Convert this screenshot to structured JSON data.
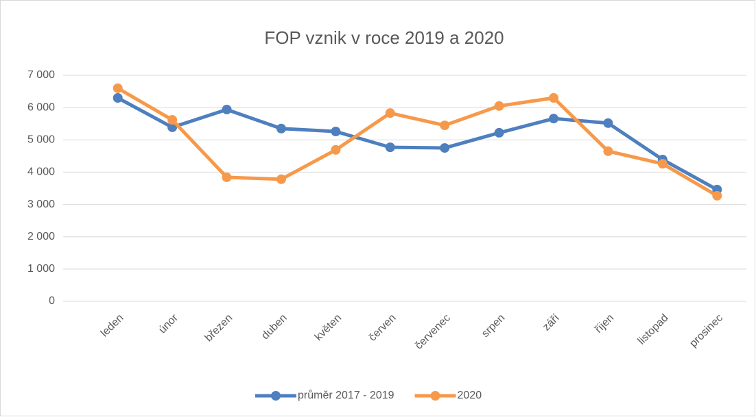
{
  "chart_data": {
    "type": "line",
    "title": "FOP vznik v roce 2019 a 2020",
    "categories": [
      "leden",
      "únor",
      "březen",
      "duben",
      "květen",
      "červen",
      "červenec",
      "srpen",
      "září",
      "říjen",
      "listopad",
      "prosinec"
    ],
    "series": [
      {
        "name": "průměr 2017 - 2019",
        "color": "#4e7fbf",
        "values": [
          6300,
          5390,
          5940,
          5350,
          5260,
          4770,
          4750,
          5220,
          5660,
          5520,
          4390,
          3460
        ]
      },
      {
        "name": "2020",
        "color": "#f7994a",
        "values": [
          6600,
          5620,
          3840,
          3780,
          4690,
          5830,
          5450,
          6050,
          6300,
          4650,
          4260,
          3270
        ]
      }
    ],
    "ylim": [
      0,
      7000
    ],
    "yticks": [
      0,
      {
        "value": 1000,
        "label": "1 000"
      },
      {
        "value": 2000,
        "label": "2 000"
      },
      {
        "value": 3000,
        "label": "3 000"
      },
      {
        "value": 4000,
        "label": "4 000"
      },
      {
        "value": 5000,
        "label": "5 000"
      },
      {
        "value": 6000,
        "label": "6 000"
      },
      {
        "value": 7000,
        "label": "7 000"
      }
    ],
    "grid": true,
    "legend": "bottom"
  }
}
